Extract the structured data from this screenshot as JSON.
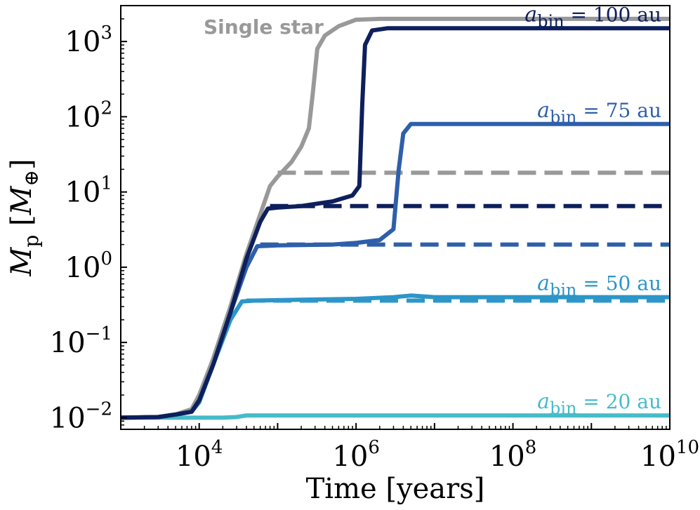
{
  "chart_data": {
    "type": "line",
    "title": "",
    "xlabel": "Time [years]",
    "ylabel": "M_p [M_⊕]",
    "ylabel_parts": {
      "main": "M",
      "main_sub": "p",
      "open": " [",
      "unit": "M",
      "unit_sub": "⊕",
      "close": "]"
    },
    "xscale": "log",
    "yscale": "log",
    "xlim": [
      1000,
      10000000000
    ],
    "ylim": [
      0.007,
      3000
    ],
    "grid": false,
    "x_ticks": [
      {
        "value": 10000,
        "base": "10",
        "exp": "4"
      },
      {
        "value": 1000000,
        "base": "10",
        "exp": "6"
      },
      {
        "value": 100000000,
        "base": "10",
        "exp": "8"
      },
      {
        "value": 10000000000,
        "base": "10",
        "exp": "10"
      }
    ],
    "y_ticks": [
      {
        "value": 0.01,
        "base": "10",
        "exp": "−2"
      },
      {
        "value": 0.1,
        "base": "10",
        "exp": "−1"
      },
      {
        "value": 1,
        "base": "10",
        "exp": "0"
      },
      {
        "value": 10,
        "base": "10",
        "exp": "1"
      },
      {
        "value": 100,
        "base": "10",
        "exp": "2"
      },
      {
        "value": 1000,
        "base": "10",
        "exp": "3"
      }
    ],
    "series": [
      {
        "name": "Single star",
        "label_style": "bold",
        "label_text": "Single star",
        "color": "#999999",
        "points": [
          [
            1000,
            0.01
          ],
          [
            3000,
            0.0102
          ],
          [
            5000,
            0.011
          ],
          [
            8000,
            0.013
          ],
          [
            10000,
            0.02
          ],
          [
            15000,
            0.06
          ],
          [
            25000,
            0.3
          ],
          [
            40000,
            1.5
          ],
          [
            60000,
            5
          ],
          [
            80000,
            12
          ],
          [
            100000,
            16
          ],
          [
            150000,
            25
          ],
          [
            200000,
            40
          ],
          [
            250000,
            70
          ],
          [
            280000,
            200
          ],
          [
            320000,
            800
          ],
          [
            400000,
            1200
          ],
          [
            600000,
            1600
          ],
          [
            1000000,
            1950
          ],
          [
            2000000,
            2000
          ],
          [
            10000000000,
            2000
          ]
        ],
        "dashed": {
          "value": 18,
          "from": 100000
        }
      },
      {
        "name": "a_bin = 100 au",
        "label_prefix": "a",
        "label_sub": "bin",
        "label_suffix": " = 100 au",
        "color": "#0d1f5c",
        "points": [
          [
            1000,
            0.01
          ],
          [
            3000,
            0.0102
          ],
          [
            5000,
            0.011
          ],
          [
            8000,
            0.012
          ],
          [
            10000,
            0.017
          ],
          [
            15000,
            0.05
          ],
          [
            25000,
            0.25
          ],
          [
            40000,
            1.3
          ],
          [
            60000,
            4
          ],
          [
            75000,
            6
          ],
          [
            100000,
            6.2
          ],
          [
            200000,
            6.5
          ],
          [
            500000,
            7.5
          ],
          [
            900000,
            9
          ],
          [
            1100000,
            12
          ],
          [
            1200000,
            150
          ],
          [
            1300000,
            900
          ],
          [
            1600000,
            1400
          ],
          [
            2500000,
            1500
          ],
          [
            10000000000,
            1500
          ]
        ],
        "dashed": {
          "value": 6.5,
          "from": 80000
        }
      },
      {
        "name": "a_bin = 75 au",
        "label_prefix": "a",
        "label_sub": "bin",
        "label_suffix": " = 75 au",
        "color": "#2e5faa",
        "points": [
          [
            1000,
            0.01
          ],
          [
            3000,
            0.0102
          ],
          [
            5000,
            0.011
          ],
          [
            8000,
            0.012
          ],
          [
            10000,
            0.017
          ],
          [
            15000,
            0.05
          ],
          [
            25000,
            0.25
          ],
          [
            40000,
            1.0
          ],
          [
            55000,
            1.9
          ],
          [
            100000,
            1.95
          ],
          [
            500000,
            2.0
          ],
          [
            1000000,
            2.1
          ],
          [
            2000000,
            2.3
          ],
          [
            3000000,
            3.2
          ],
          [
            3500000,
            20
          ],
          [
            4000000,
            60
          ],
          [
            5000000,
            80
          ],
          [
            10000000000,
            80
          ]
        ],
        "dashed": {
          "value": 2,
          "from": 60000
        }
      },
      {
        "name": "a_bin = 50 au",
        "label_prefix": "a",
        "label_sub": "bin",
        "label_suffix": " = 50 au",
        "color": "#2c96c8",
        "points": [
          [
            1000,
            0.01
          ],
          [
            3000,
            0.0102
          ],
          [
            5000,
            0.011
          ],
          [
            8000,
            0.012
          ],
          [
            10000,
            0.016
          ],
          [
            15000,
            0.05
          ],
          [
            25000,
            0.2
          ],
          [
            35000,
            0.35
          ],
          [
            50000,
            0.36
          ],
          [
            200000,
            0.37
          ],
          [
            1000000,
            0.38
          ],
          [
            3000000,
            0.4
          ],
          [
            5000000,
            0.42
          ],
          [
            10000000,
            0.4
          ],
          [
            10000000000,
            0.4
          ]
        ],
        "dashed": {
          "value": 0.36,
          "from": 40000
        }
      },
      {
        "name": "a_bin = 20 au",
        "label_prefix": "a",
        "label_sub": "bin",
        "label_suffix": " = 20 au",
        "color": "#45bcc8",
        "points": [
          [
            1000,
            0.01
          ],
          [
            20000,
            0.01
          ],
          [
            30000,
            0.0102
          ],
          [
            40000,
            0.0107
          ],
          [
            100000,
            0.0107
          ],
          [
            10000000000,
            0.0107
          ]
        ],
        "dashed": null
      }
    ]
  }
}
